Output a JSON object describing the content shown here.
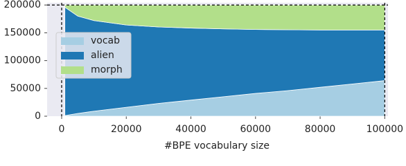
{
  "chart_data": {
    "type": "stacked_area",
    "x_label": "#BPE vocabulary size",
    "x": [
      1000,
      5000,
      10000,
      20000,
      30000,
      40000,
      50000,
      60000,
      70000,
      80000,
      90000,
      100000
    ],
    "series": [
      {
        "name": "vocab",
        "color": "#a6cee3",
        "values": [
          1000,
          5000,
          9000,
          16000,
          23000,
          29000,
          35000,
          41000,
          46000,
          52000,
          58000,
          64000
        ]
      },
      {
        "name": "alien",
        "color": "#1f78b4",
        "values": [
          195000,
          175000,
          163000,
          148000,
          137500,
          129500,
          122000,
          115000,
          109500,
          103000,
          97000,
          91000
        ]
      },
      {
        "name": "morph",
        "color": "#b2df8a",
        "values": [
          4000,
          20000,
          28000,
          36000,
          39500,
          41500,
          43000,
          44000,
          44500,
          45000,
          45000,
          45000
        ]
      }
    ],
    "xlim": [
      -4500,
      101000
    ],
    "ylim": [
      0,
      204000
    ],
    "xticks": [
      0,
      20000,
      40000,
      60000,
      80000,
      100000
    ],
    "yticks": [
      0,
      50000,
      100000,
      150000,
      200000
    ],
    "vlines": [
      0,
      100000
    ],
    "hlines": [
      200000
    ],
    "legend": "upper left",
    "background": "#eaeaf2"
  }
}
